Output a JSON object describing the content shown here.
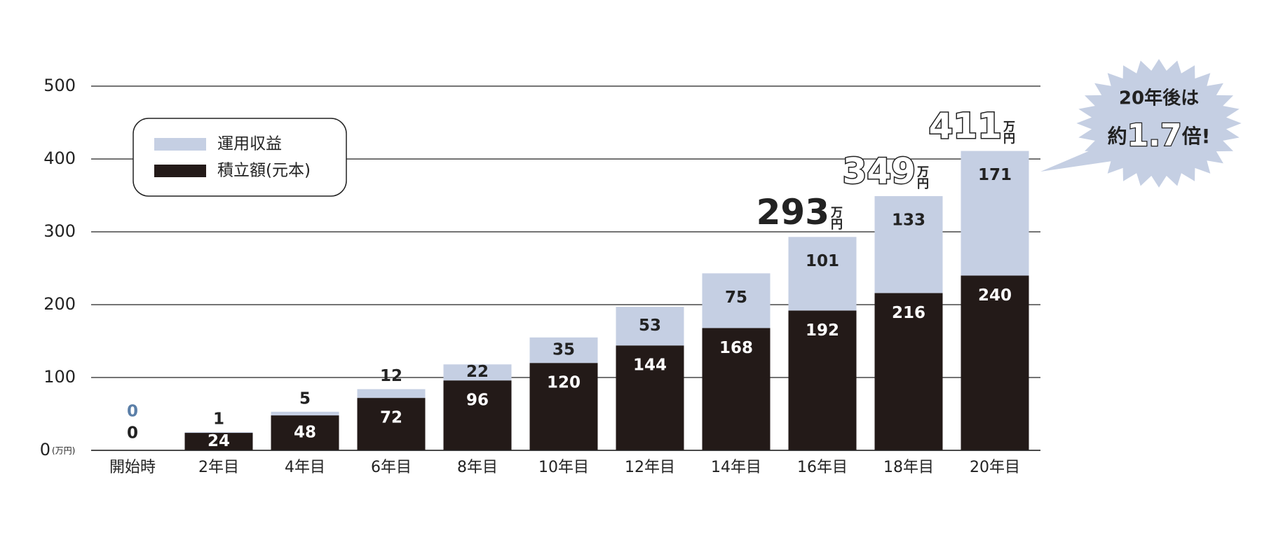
{
  "chart_data": {
    "type": "stacked_bar",
    "categories": [
      "開始時",
      "2年目",
      "4年目",
      "6年目",
      "8年目",
      "10年目",
      "12年目",
      "14年目",
      "16年目",
      "18年目",
      "20年目"
    ],
    "series": [
      {
        "name": "積立額(元本)",
        "color": "#231a18",
        "values": [
          0,
          24,
          48,
          72,
          96,
          120,
          144,
          168,
          192,
          216,
          240
        ]
      },
      {
        "name": "運用収益",
        "color": "#c5cfe3",
        "values": [
          0,
          1,
          5,
          12,
          22,
          35,
          53,
          75,
          101,
          133,
          171
        ]
      }
    ],
    "ylim": [
      0,
      500
    ],
    "yticks": [
      0,
      100,
      200,
      300,
      400,
      500
    ],
    "y_unit": "(万円)",
    "grid": true,
    "annotations": [
      {
        "text": "293",
        "unit": "万円",
        "style": "solid"
      },
      {
        "text": "349",
        "unit": "万円",
        "style": "outline"
      },
      {
        "text": "411",
        "unit": "万円",
        "style": "outline"
      }
    ],
    "callout": {
      "line1": "20年後は",
      "prefix": "約",
      "emphasis": "1.7",
      "suffix": "倍!",
      "color": "#c5cfe3"
    }
  }
}
